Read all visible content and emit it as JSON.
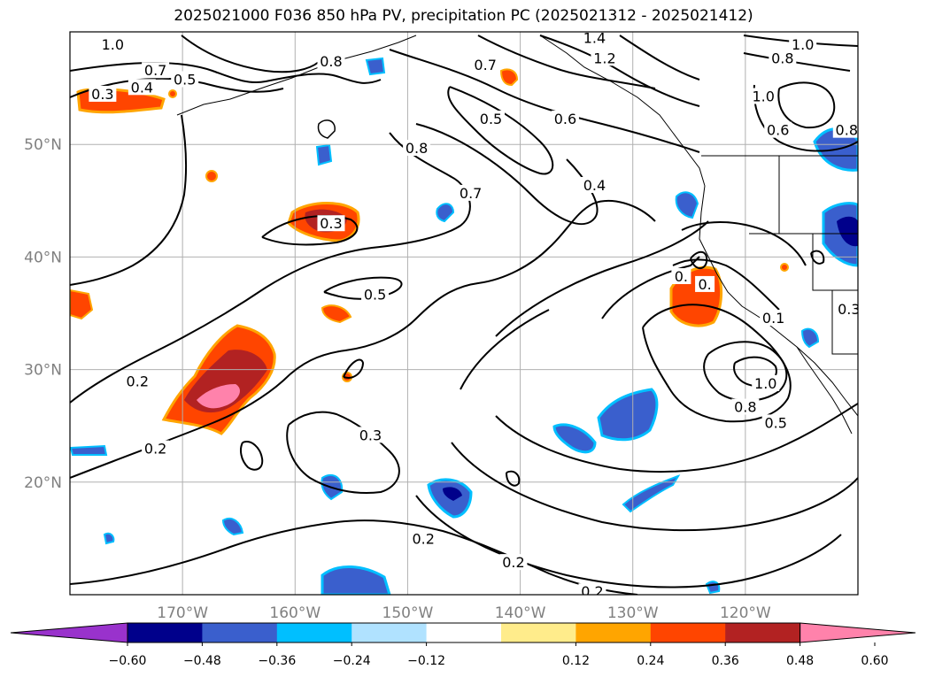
{
  "title": "2025021000 F036 850 hPa PV, precipitation PC (2025021312 - 2025021412)",
  "chart_data": {
    "type": "contour-map",
    "title": "2025021000 F036 850 hPa PV, precipitation PC (2025021312 - 2025021412)",
    "lon_range": [
      -180,
      -110
    ],
    "lat_range": [
      10,
      60
    ],
    "lon_ticks": [
      -170,
      -160,
      -150,
      -140,
      -130,
      -120
    ],
    "lon_tick_labels": [
      "170°W",
      "160°W",
      "150°W",
      "140°W",
      "130°W",
      "120°W"
    ],
    "lat_ticks": [
      20,
      30,
      40,
      50
    ],
    "lat_tick_labels": [
      "20°N",
      "30°N",
      "40°N",
      "50°N"
    ],
    "grid": true,
    "colorbar": {
      "ticks": [
        -0.6,
        -0.48,
        -0.36,
        -0.24,
        -0.12,
        0.12,
        0.24,
        0.36,
        0.48,
        0.6
      ],
      "tick_labels": [
        "−0.60",
        "−0.48",
        "−0.36",
        "−0.24",
        "−0.12",
        "0.12",
        "0.24",
        "0.36",
        "0.48",
        "0.60"
      ],
      "colors": [
        "#9932cc",
        "#00008b",
        "#3a5fcd",
        "#00bfff",
        "#b0e2ff",
        "#ffffff",
        "#ffec8b",
        "#ffa500",
        "#ff4500",
        "#b22222",
        "#ff82ab"
      ],
      "extend": "both"
    },
    "pv_contour_labels": [
      {
        "text": "1.0",
        "lon": -176.2,
        "lat": 58.9
      },
      {
        "text": "0.8",
        "lon": -156.8,
        "lat": 57.4
      },
      {
        "text": "0.7",
        "lon": -172.4,
        "lat": 56.6
      },
      {
        "text": "0.5",
        "lon": -169.8,
        "lat": 55.8
      },
      {
        "text": "0.4",
        "lon": -173.6,
        "lat": 55.1
      },
      {
        "text": "0.3",
        "lon": -177.1,
        "lat": 54.5
      },
      {
        "text": "1.4",
        "lon": -133.4,
        "lat": 59.5
      },
      {
        "text": "1.2",
        "lon": -132.5,
        "lat": 57.7
      },
      {
        "text": "0.7",
        "lon": -143.1,
        "lat": 57.1
      },
      {
        "text": "0.5",
        "lon": -142.6,
        "lat": 52.3
      },
      {
        "text": "0.6",
        "lon": -136.0,
        "lat": 52.3
      },
      {
        "text": "0.8",
        "lon": -149.2,
        "lat": 49.7
      },
      {
        "text": "0.7",
        "lon": -144.4,
        "lat": 45.7
      },
      {
        "text": "0.4",
        "lon": -133.4,
        "lat": 46.4
      },
      {
        "text": "1.0",
        "lon": -114.9,
        "lat": 58.9
      },
      {
        "text": "0.8",
        "lon": -116.7,
        "lat": 57.7
      },
      {
        "text": "1.0",
        "lon": -118.4,
        "lat": 54.3
      },
      {
        "text": "0.6",
        "lon": -117.1,
        "lat": 51.3
      },
      {
        "text": "0.8",
        "lon": -111.0,
        "lat": 51.3
      },
      {
        "text": "0.3",
        "lon": -156.8,
        "lat": 43.0
      },
      {
        "text": "0.5",
        "lon": -152.9,
        "lat": 36.7
      },
      {
        "text": "0.2",
        "lon": -174.0,
        "lat": 29.0
      },
      {
        "text": "0.2",
        "lon": -172.4,
        "lat": 23.0
      },
      {
        "text": "0.3",
        "lon": -153.3,
        "lat": 24.2
      },
      {
        "text": "0.2",
        "lon": -148.6,
        "lat": 15.0
      },
      {
        "text": "0.2",
        "lon": -140.6,
        "lat": 12.9
      },
      {
        "text": "0.2",
        "lon": -133.6,
        "lat": 10.3
      },
      {
        "text": "0.",
        "lon": -125.7,
        "lat": 38.3
      },
      {
        "text": "0.",
        "lon": -123.6,
        "lat": 37.6
      },
      {
        "text": "0.1",
        "lon": -117.5,
        "lat": 34.6
      },
      {
        "text": "1.0",
        "lon": -118.2,
        "lat": 28.8
      },
      {
        "text": "0.8",
        "lon": -120.0,
        "lat": 26.7
      },
      {
        "text": "0.5",
        "lon": -117.3,
        "lat": 25.3
      },
      {
        "text": "0.3",
        "lon": -110.8,
        "lat": 35.4
      }
    ],
    "precip_areas": [
      {
        "name": "dateline-north",
        "lon": -175.8,
        "lat": 54.7,
        "value": 0.36
      },
      {
        "name": "gulf-of-alaska-north",
        "lon": -139.5,
        "lat": 56.7,
        "value": 0.36
      },
      {
        "name": "mid-pacific-north",
        "lon": -155.3,
        "lat": 42.6,
        "value": 0.48
      },
      {
        "name": "west-edge",
        "lon": -179.0,
        "lat": 35.8,
        "value": 0.36
      },
      {
        "name": "subtropical-band-west",
        "lon": -166.0,
        "lat": 29.0,
        "value": 0.6
      },
      {
        "name": "small-red",
        "lon": -152.8,
        "lat": 35.6,
        "value": 0.36
      },
      {
        "name": "california-offshore",
        "lon": -122.3,
        "lat": 36.0,
        "value": 0.36
      },
      {
        "name": "pacific-northwest-inland",
        "lon": -110.9,
        "lat": 42.4,
        "value": -0.6
      },
      {
        "name": "british-columbia",
        "lon": -115.5,
        "lat": 49.2,
        "value": -0.48
      },
      {
        "name": "subtropical-blue-east",
        "lon": -131.0,
        "lat": 25.8,
        "value": -0.48
      },
      {
        "name": "subtropical-blue-mid",
        "lon": -134.8,
        "lat": 24.2,
        "value": -0.36
      },
      {
        "name": "south-blue",
        "lon": -156.0,
        "lat": 10.9,
        "value": -0.48
      },
      {
        "name": "south-center-blue",
        "lon": -145.3,
        "lat": 18.8,
        "value": -0.48
      }
    ]
  }
}
